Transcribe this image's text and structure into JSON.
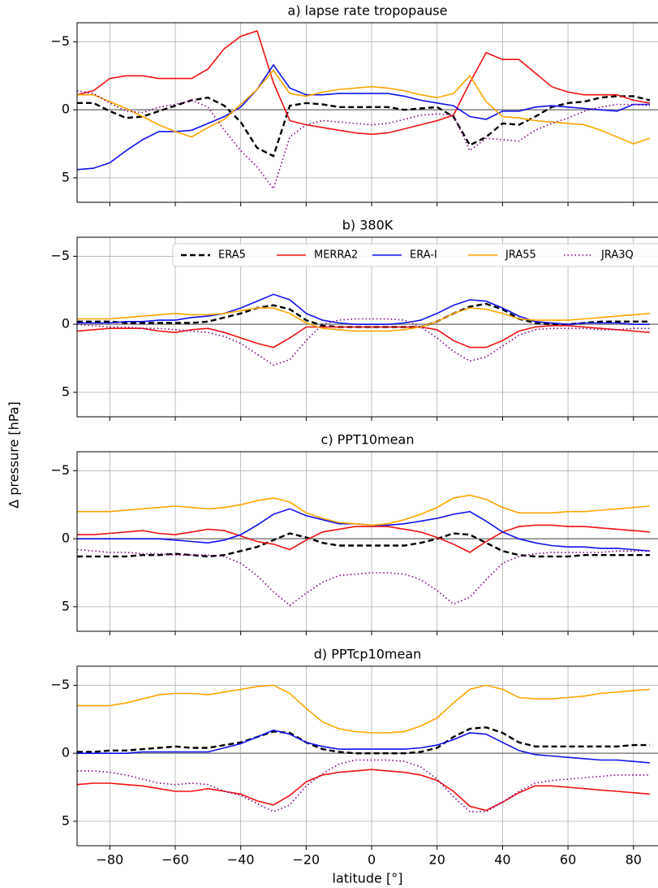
{
  "ylabel": "Δ pressure [hPa]",
  "chart_data": [
    {
      "type": "line",
      "title": "a) lapse rate tropopause",
      "x": [
        -90,
        -85,
        -80,
        -75,
        -70,
        -65,
        -60,
        -55,
        -50,
        -45,
        -40,
        -35,
        -30,
        -25,
        -20,
        -15,
        -10,
        -5,
        0,
        5,
        10,
        15,
        20,
        25,
        30,
        35,
        40,
        45,
        50,
        55,
        60,
        65,
        70,
        75,
        80,
        85
      ],
      "xlim": [
        -90,
        87.5
      ],
      "xticks": [
        -80,
        -60,
        -40,
        -20,
        0,
        20,
        40,
        60,
        80
      ],
      "ylim": [
        -6.4,
        6.8
      ],
      "y_inverted": true,
      "yticks": [
        {
          "value": -5,
          "label": "−5"
        },
        0,
        5
      ],
      "grid": true,
      "hline": 0,
      "series": [
        {
          "color": "#000000",
          "style": "dashed",
          "values": [
            -0.5,
            -0.5,
            0.1,
            0.6,
            0.5,
            0.1,
            -0.3,
            -0.7,
            -0.9,
            -0.3,
            0.9,
            2.8,
            3.4,
            -0.3,
            -0.5,
            -0.4,
            -0.2,
            -0.2,
            -0.2,
            -0.2,
            0,
            -0.1,
            -0.2,
            0.5,
            2.6,
            2.0,
            1.0,
            1.1,
            0.5,
            -0.2,
            -0.5,
            -0.6,
            -0.9,
            -1.0,
            -1.0,
            -0.7
          ]
        },
        {
          "color": "#ee1111",
          "style": "solid",
          "values": [
            -1.1,
            -1.4,
            -2.3,
            -2.5,
            -2.5,
            -2.3,
            -2.3,
            -2.3,
            -3.0,
            -4.5,
            -5.4,
            -5.8,
            -2.0,
            0.8,
            1.1,
            1.3,
            1.5,
            1.7,
            1.8,
            1.7,
            1.4,
            1.1,
            0.8,
            0.4,
            -2.0,
            -4.2,
            -3.7,
            -3.7,
            -2.7,
            -1.7,
            -1.3,
            -1.1,
            -1.1,
            -1.1,
            -0.7,
            -0.5
          ]
        },
        {
          "color": "#1111ee",
          "style": "solid",
          "values": [
            4.4,
            4.3,
            3.9,
            3.0,
            2.2,
            1.6,
            1.6,
            1.5,
            1.0,
            0.5,
            -0.2,
            -1.5,
            -3.3,
            -1.6,
            -1.1,
            -1.1,
            -1.2,
            -1.2,
            -1.2,
            -1.2,
            -1.0,
            -0.7,
            -0.5,
            -0.3,
            0.5,
            0.7,
            0.1,
            0.1,
            -0.2,
            -0.3,
            -0.2,
            -0.1,
            0,
            0.1,
            -0.4,
            -0.4
          ]
        },
        {
          "color": "#ffa500",
          "style": "solid",
          "values": [
            -1.1,
            -1.1,
            -0.6,
            -0.1,
            0.5,
            1.1,
            1.6,
            2.0,
            1.3,
            0.7,
            -0.4,
            -1.5,
            -2.9,
            -1.2,
            -1.0,
            -1.3,
            -1.5,
            -1.6,
            -1.7,
            -1.6,
            -1.4,
            -1.1,
            -0.9,
            -1.2,
            -2.5,
            -0.6,
            0.5,
            0.6,
            0.8,
            0.9,
            1.0,
            1.1,
            1.5,
            2.0,
            2.5,
            2.1
          ]
        },
        {
          "color": "#800080",
          "style": "dotted",
          "values": [
            -1.4,
            -1.2,
            -0.5,
            0.1,
            0.2,
            -0.2,
            -0.4,
            -0.7,
            -0.2,
            1.5,
            3.0,
            4.2,
            5.8,
            2.0,
            1.1,
            0.8,
            0.9,
            1.0,
            1.1,
            1.0,
            0.7,
            0.4,
            0.3,
            0.4,
            3.0,
            2.1,
            2.2,
            2.3,
            1.5,
            1.0,
            0.6,
            0.1,
            -0.2,
            -0.4,
            -0.4,
            -0.3
          ]
        }
      ]
    },
    {
      "type": "line",
      "title": "b) 380K",
      "x": [
        -90,
        -85,
        -80,
        -75,
        -70,
        -65,
        -60,
        -55,
        -50,
        -45,
        -40,
        -35,
        -30,
        -25,
        -20,
        -15,
        -10,
        -5,
        0,
        5,
        10,
        15,
        20,
        25,
        30,
        35,
        40,
        45,
        50,
        55,
        60,
        65,
        70,
        75,
        80,
        85
      ],
      "xlim": [
        -90,
        87.5
      ],
      "xticks": [
        -80,
        -60,
        -40,
        -20,
        0,
        20,
        40,
        60,
        80
      ],
      "ylim": [
        -6.4,
        6.8
      ],
      "y_inverted": true,
      "yticks": [
        {
          "value": -5,
          "label": "−5"
        },
        0,
        5
      ],
      "grid": true,
      "hline": 0,
      "legend": "upper right",
      "series": [
        {
          "name": "ERA5",
          "color": "#000000",
          "style": "dashed",
          "values": [
            -0.2,
            -0.2,
            -0.2,
            -0.1,
            -0.1,
            -0.1,
            -0.1,
            -0.1,
            -0.2,
            -0.5,
            -0.8,
            -1.2,
            -1.4,
            -1.1,
            -0.3,
            0.1,
            0.2,
            0.2,
            0.2,
            0.2,
            0.2,
            0.2,
            -0.2,
            -0.8,
            -1.3,
            -1.5,
            -1.1,
            -0.4,
            -0.1,
            0,
            0,
            -0.1,
            -0.2,
            -0.2,
            -0.2,
            -0.2
          ]
        },
        {
          "name": "MERRA2",
          "color": "#ee1111",
          "style": "solid",
          "values": [
            0.5,
            0.4,
            0.3,
            0.3,
            0.3,
            0.5,
            0.6,
            0.4,
            0.3,
            0.6,
            1.0,
            1.4,
            1.7,
            1.0,
            0.2,
            0.2,
            0.2,
            0.2,
            0.2,
            0.2,
            0.2,
            0.2,
            0.4,
            1.2,
            1.7,
            1.7,
            1.2,
            0.5,
            0.2,
            0.1,
            0.1,
            0.2,
            0.3,
            0.4,
            0.5,
            0.6
          ]
        },
        {
          "name": "ERA-I",
          "color": "#1111ee",
          "style": "solid",
          "values": [
            -0.1,
            -0.1,
            -0.1,
            -0.2,
            -0.2,
            -0.3,
            -0.3,
            -0.5,
            -0.6,
            -0.8,
            -1.2,
            -1.7,
            -2.2,
            -1.8,
            -0.8,
            -0.3,
            -0.1,
            0,
            0,
            0,
            -0.1,
            -0.3,
            -0.8,
            -1.4,
            -1.8,
            -1.7,
            -1.2,
            -0.6,
            -0.2,
            -0.1,
            0,
            -0.1,
            -0.1,
            -0.1,
            0,
            0
          ]
        },
        {
          "name": "JRA55",
          "color": "#ffa500",
          "style": "solid",
          "values": [
            -0.4,
            -0.4,
            -0.4,
            -0.5,
            -0.6,
            -0.7,
            -0.8,
            -0.7,
            -0.7,
            -0.8,
            -1.0,
            -1.2,
            -1.2,
            -0.8,
            -0.1,
            0.3,
            0.4,
            0.5,
            0.5,
            0.5,
            0.4,
            0.2,
            -0.2,
            -0.8,
            -1.2,
            -1.1,
            -0.8,
            -0.4,
            -0.3,
            -0.3,
            -0.3,
            -0.4,
            -0.5,
            -0.6,
            -0.7,
            -0.8
          ]
        },
        {
          "name": "JRA3Q",
          "color": "#800080",
          "style": "dotted",
          "values": [
            0,
            0.1,
            0.2,
            0.2,
            0.3,
            0.3,
            0.4,
            0.5,
            0.6,
            0.9,
            1.4,
            2.2,
            3.0,
            2.6,
            1.2,
            0,
            -0.3,
            -0.4,
            -0.4,
            -0.4,
            -0.3,
            0.2,
            1.0,
            2.0,
            2.7,
            2.4,
            1.6,
            0.8,
            0.4,
            0.3,
            0.3,
            0.3,
            0.4,
            0.4,
            0.3,
            0.3
          ]
        }
      ]
    },
    {
      "type": "line",
      "title": "c) PPT10mean",
      "x": [
        -90,
        -85,
        -80,
        -75,
        -70,
        -65,
        -60,
        -55,
        -50,
        -45,
        -40,
        -35,
        -30,
        -25,
        -20,
        -15,
        -10,
        -5,
        0,
        5,
        10,
        15,
        20,
        25,
        30,
        35,
        40,
        45,
        50,
        55,
        60,
        65,
        70,
        75,
        80,
        85
      ],
      "xlim": [
        -90,
        87.5
      ],
      "xticks": [
        -80,
        -60,
        -40,
        -20,
        0,
        20,
        40,
        60,
        80
      ],
      "ylim": [
        -6.4,
        6.8
      ],
      "y_inverted": true,
      "yticks": [
        {
          "value": -5,
          "label": "−5"
        },
        0,
        5
      ],
      "grid": true,
      "hline": 0,
      "series": [
        {
          "color": "#000000",
          "style": "dashed",
          "values": [
            1.3,
            1.3,
            1.3,
            1.3,
            1.2,
            1.2,
            1.1,
            1.2,
            1.3,
            1.2,
            0.9,
            0.6,
            0.1,
            -0.4,
            -0.1,
            0.3,
            0.5,
            0.5,
            0.5,
            0.5,
            0.5,
            0.3,
            0,
            -0.4,
            -0.3,
            0.3,
            0.9,
            1.2,
            1.3,
            1.3,
            1.3,
            1.2,
            1.2,
            1.2,
            1.2,
            1.2
          ]
        },
        {
          "color": "#ee1111",
          "style": "solid",
          "values": [
            -0.3,
            -0.3,
            -0.4,
            -0.5,
            -0.6,
            -0.4,
            -0.3,
            -0.5,
            -0.7,
            -0.6,
            -0.2,
            0.2,
            0.4,
            0.8,
            0.1,
            -0.5,
            -0.7,
            -0.9,
            -0.9,
            -0.9,
            -0.7,
            -0.5,
            -0.1,
            0.4,
            1.0,
            0.2,
            -0.5,
            -0.9,
            -1.0,
            -1.0,
            -0.9,
            -0.9,
            -0.8,
            -0.7,
            -0.6,
            -0.5
          ]
        },
        {
          "color": "#1111ee",
          "style": "solid",
          "values": [
            0,
            0,
            0,
            0,
            0,
            0,
            0.1,
            0.2,
            0.3,
            0.1,
            -0.3,
            -1.0,
            -1.8,
            -2.2,
            -1.7,
            -1.4,
            -1.1,
            -1.1,
            -1.0,
            -1.0,
            -1.1,
            -1.3,
            -1.5,
            -1.8,
            -2.0,
            -1.3,
            -0.5,
            0,
            0.3,
            0.5,
            0.6,
            0.6,
            0.7,
            0.7,
            0.8,
            0.9
          ]
        },
        {
          "color": "#ffa500",
          "style": "solid",
          "values": [
            -2.0,
            -2.0,
            -2.0,
            -2.1,
            -2.2,
            -2.3,
            -2.4,
            -2.3,
            -2.2,
            -2.3,
            -2.5,
            -2.8,
            -3.0,
            -2.7,
            -1.9,
            -1.5,
            -1.2,
            -1.1,
            -1.0,
            -1.1,
            -1.4,
            -1.8,
            -2.3,
            -3.0,
            -3.2,
            -2.9,
            -2.3,
            -1.9,
            -1.9,
            -1.9,
            -2.0,
            -2.0,
            -2.1,
            -2.2,
            -2.3,
            -2.4
          ]
        },
        {
          "color": "#800080",
          "style": "dotted",
          "values": [
            0.8,
            0.9,
            1.0,
            1.0,
            1.1,
            1.1,
            1.2,
            1.2,
            1.2,
            1.3,
            1.8,
            2.7,
            3.9,
            4.9,
            4.0,
            3.2,
            2.7,
            2.6,
            2.5,
            2.5,
            2.6,
            3.0,
            3.8,
            4.8,
            4.3,
            3.0,
            1.8,
            1.3,
            1.1,
            1.0,
            1.0,
            1.0,
            1.0,
            0.9,
            0.9,
            0.9
          ]
        }
      ]
    },
    {
      "type": "line",
      "title": "d) PPTcp10mean",
      "xlabel": "latitude [°]",
      "x": [
        -90,
        -85,
        -80,
        -75,
        -70,
        -65,
        -60,
        -55,
        -50,
        -45,
        -40,
        -35,
        -30,
        -25,
        -20,
        -15,
        -10,
        -5,
        0,
        5,
        10,
        15,
        20,
        25,
        30,
        35,
        40,
        45,
        50,
        55,
        60,
        65,
        70,
        75,
        80,
        85
      ],
      "xlim": [
        -90,
        87.5
      ],
      "xticks": [
        {
          "value": -80,
          "label": "−80"
        },
        {
          "value": -60,
          "label": "−60"
        },
        {
          "value": -40,
          "label": "−40"
        },
        {
          "value": -20,
          "label": "−20"
        },
        0,
        20,
        40,
        60,
        80
      ],
      "ylim": [
        -6.4,
        6.8
      ],
      "y_inverted": true,
      "yticks": [
        {
          "value": -5,
          "label": "−5"
        },
        0,
        5
      ],
      "grid": true,
      "hline": 0,
      "series": [
        {
          "color": "#000000",
          "style": "dashed",
          "values": [
            -0.1,
            -0.1,
            -0.2,
            -0.2,
            -0.3,
            -0.4,
            -0.5,
            -0.4,
            -0.4,
            -0.6,
            -0.8,
            -1.2,
            -1.6,
            -1.5,
            -0.8,
            -0.3,
            -0.1,
            0,
            0,
            0,
            0,
            -0.1,
            -0.4,
            -1.2,
            -1.8,
            -1.9,
            -1.5,
            -0.8,
            -0.5,
            -0.5,
            -0.5,
            -0.5,
            -0.5,
            -0.5,
            -0.6,
            -0.6
          ]
        },
        {
          "color": "#ee1111",
          "style": "solid",
          "values": [
            2.3,
            2.2,
            2.2,
            2.3,
            2.4,
            2.6,
            2.8,
            2.8,
            2.6,
            2.8,
            3.0,
            3.5,
            3.8,
            3.1,
            2.1,
            1.6,
            1.4,
            1.3,
            1.2,
            1.3,
            1.4,
            1.6,
            2.0,
            2.8,
            3.9,
            4.2,
            3.6,
            2.9,
            2.4,
            2.4,
            2.5,
            2.6,
            2.7,
            2.8,
            2.9,
            3.0
          ]
        },
        {
          "color": "#1111ee",
          "style": "solid",
          "values": [
            0,
            0,
            0,
            0,
            -0.1,
            -0.1,
            -0.1,
            -0.1,
            -0.1,
            -0.4,
            -0.7,
            -1.2,
            -1.7,
            -1.4,
            -0.8,
            -0.5,
            -0.3,
            -0.3,
            -0.3,
            -0.3,
            -0.3,
            -0.4,
            -0.6,
            -1.0,
            -1.5,
            -1.4,
            -0.8,
            -0.2,
            0.1,
            0.2,
            0.3,
            0.4,
            0.5,
            0.5,
            0.6,
            0.7
          ]
        },
        {
          "color": "#ffa500",
          "style": "solid",
          "values": [
            -3.5,
            -3.5,
            -3.5,
            -3.7,
            -4.0,
            -4.3,
            -4.4,
            -4.4,
            -4.3,
            -4.5,
            -4.7,
            -4.9,
            -5.0,
            -4.4,
            -3.3,
            -2.3,
            -1.8,
            -1.6,
            -1.5,
            -1.5,
            -1.6,
            -2.0,
            -2.6,
            -3.7,
            -4.7,
            -5.0,
            -4.7,
            -4.1,
            -4.0,
            -4.0,
            -4.1,
            -4.2,
            -4.4,
            -4.5,
            -4.6,
            -4.7
          ]
        },
        {
          "color": "#800080",
          "style": "dotted",
          "values": [
            1.3,
            1.3,
            1.4,
            1.6,
            1.9,
            2.2,
            2.3,
            2.2,
            2.3,
            2.8,
            3.1,
            3.7,
            4.3,
            3.8,
            2.4,
            1.5,
            0.8,
            0.5,
            0.5,
            0.5,
            0.6,
            1.0,
            1.9,
            3.2,
            4.3,
            4.3,
            3.6,
            2.8,
            2.2,
            2.0,
            1.9,
            1.8,
            1.7,
            1.6,
            1.6,
            1.6
          ]
        }
      ]
    }
  ]
}
